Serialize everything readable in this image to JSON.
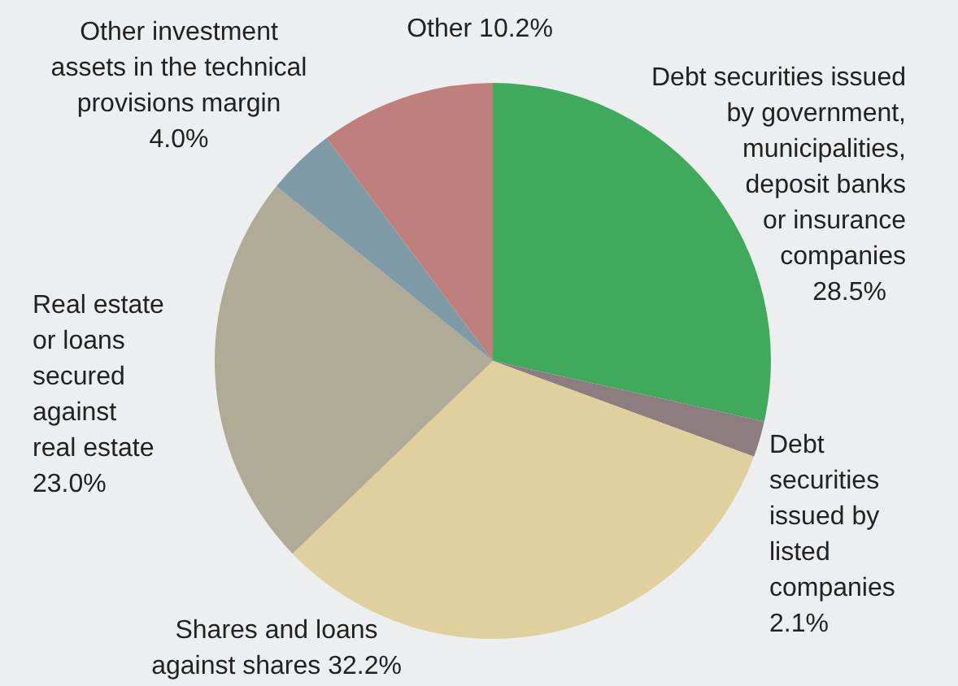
{
  "chart_data": {
    "type": "pie",
    "categories": [
      "Debt securities issued by government, municipalities, deposit banks or insurance companies",
      "Debt securities issued by listed companies",
      "Shares and loans against shares",
      "Real estate or loans secured against real estate",
      "Other investment assets in the technical provisions margin",
      "Other"
    ],
    "values": [
      28.5,
      2.1,
      32.2,
      23.0,
      4.0,
      10.2
    ],
    "colors": [
      "#3faa5b",
      "#8e7d80",
      "#e0d09d",
      "#b0ab97",
      "#7f9ba7",
      "#bf807b"
    ],
    "value_labels": [
      "28.5%",
      "2.1%",
      "32.2%",
      "23.0%",
      "4.0%",
      "10.2%"
    ],
    "legend": false
  }
}
